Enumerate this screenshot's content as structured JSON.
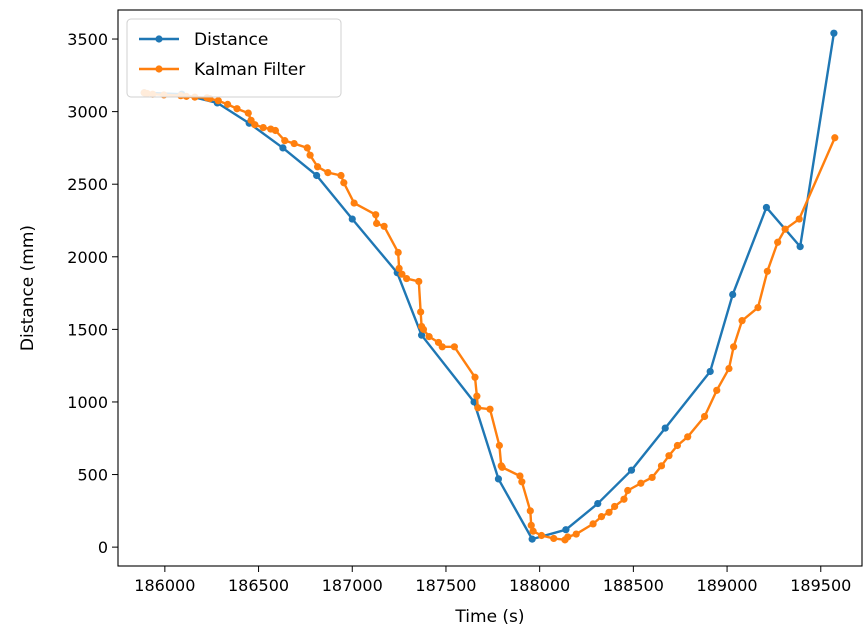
{
  "chart_data": {
    "type": "line",
    "title": "",
    "xlabel": "Time (s)",
    "ylabel": "Distance (mm)",
    "xlim": [
      185750,
      189720
    ],
    "ylim": [
      -130,
      3700
    ],
    "xticks": [
      186000,
      186500,
      187000,
      187500,
      188000,
      188500,
      189000,
      189500
    ],
    "yticks": [
      0,
      500,
      1000,
      1500,
      2000,
      2500,
      3000,
      3500
    ],
    "grid": false,
    "legend_position": "upper-left",
    "series": [
      {
        "name": "Distance",
        "color": "#1f77b4",
        "x": [
          185890,
          186090,
          186280,
          186450,
          186630,
          186810,
          187000,
          187240,
          187370,
          187650,
          187780,
          187960,
          188140,
          188310,
          188490,
          188670,
          188910,
          189030,
          189210,
          189390,
          189570
        ],
        "y": [
          3130,
          3120,
          3060,
          2920,
          2750,
          2560,
          2260,
          1890,
          1460,
          1000,
          470,
          55,
          120,
          300,
          530,
          820,
          1210,
          1740,
          2340,
          2070,
          3540
        ]
      },
      {
        "name": "Kalman Filter",
        "color": "#ff7f0e",
        "x": [
          185890,
          185905,
          185935,
          185995,
          186085,
          186115,
          186160,
          186225,
          186240,
          186285,
          186335,
          186385,
          186445,
          186460,
          186480,
          186525,
          186565,
          186590,
          186640,
          186690,
          186760,
          186775,
          186815,
          186870,
          186940,
          186955,
          187010,
          187125,
          187130,
          187170,
          187245,
          187250,
          187265,
          187290,
          187355,
          187365,
          187370,
          187380,
          187410,
          187460,
          187480,
          187545,
          187655,
          187665,
          187670,
          187735,
          187785,
          187795,
          187800,
          187895,
          187905,
          187950,
          187955,
          187965,
          188010,
          188075,
          188135,
          188150,
          188195,
          188285,
          188330,
          188370,
          188400,
          188450,
          188470,
          188540,
          188600,
          188650,
          188690,
          188735,
          188790,
          188880,
          188945,
          189010,
          189035,
          189080,
          189165,
          189215,
          189270,
          189310,
          189385,
          189575
        ],
        "y": [
          3130,
          3125,
          3120,
          3115,
          3110,
          3105,
          3100,
          3095,
          3090,
          3075,
          3050,
          3020,
          2990,
          2940,
          2910,
          2890,
          2880,
          2870,
          2800,
          2780,
          2750,
          2700,
          2620,
          2580,
          2560,
          2510,
          2370,
          2290,
          2230,
          2210,
          2030,
          1920,
          1880,
          1850,
          1830,
          1620,
          1520,
          1500,
          1450,
          1410,
          1380,
          1380,
          1170,
          1040,
          960,
          950,
          700,
          560,
          550,
          490,
          450,
          250,
          150,
          110,
          80,
          60,
          50,
          70,
          90,
          160,
          210,
          240,
          280,
          330,
          390,
          440,
          480,
          560,
          630,
          700,
          760,
          900,
          1080,
          1230,
          1380,
          1560,
          1650,
          1900,
          2100,
          2190,
          2260,
          2820
        ]
      }
    ]
  }
}
